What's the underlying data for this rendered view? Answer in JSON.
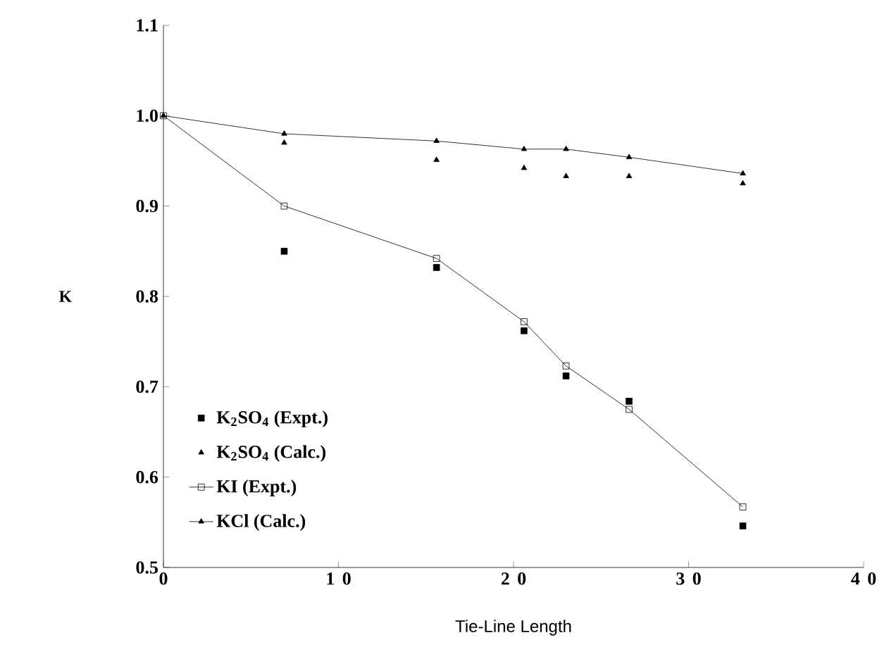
{
  "chart_data": {
    "type": "line",
    "xlabel": "Tie-Line Length",
    "ylabel": "K",
    "xlim": [
      0,
      40
    ],
    "ylim": [
      0.5,
      1.1
    ],
    "xticks": [
      0,
      10,
      20,
      30,
      40
    ],
    "yticks": [
      0.5,
      0.6,
      0.7,
      0.8,
      0.9,
      {
        "value": 1.0,
        "label": "1.0"
      },
      1.1
    ],
    "grid": false,
    "legend": "bottom left",
    "series": [
      {
        "name": "K$_{2}$SO$_{4}$ (Expt.)",
        "type": "scatter",
        "marker": "square",
        "color": "#000000",
        "x": [
          6.9,
          15.6,
          20.6,
          23.0,
          26.6,
          33.1
        ],
        "values": [
          0.85,
          0.832,
          0.762,
          0.712,
          0.684,
          0.546
        ]
      },
      {
        "name": "K$_{2}$SO$_{4}$ (Calc.)",
        "type": "scatter",
        "marker": "triangle",
        "color": "#000000",
        "x": [
          6.9,
          15.6,
          20.6,
          23.0,
          26.6,
          33.1
        ],
        "values": [
          0.97,
          0.951,
          0.942,
          0.933,
          0.933,
          0.925
        ]
      },
      {
        "name": "KI (Expt.)",
        "marker": "square",
        "color": "#000000",
        "x": [
          0,
          6.9,
          15.6,
          20.6,
          23.0,
          26.6,
          33.1
        ],
        "values": [
          1.0,
          0.9,
          0.842,
          0.772,
          0.723,
          0.675,
          0.567
        ]
      },
      {
        "name": "KCl (Calc.)",
        "marker": "triangle",
        "color": "#000000",
        "x": [
          0,
          6.9,
          15.6,
          20.6,
          23.0,
          26.6,
          33.1
        ],
        "values": [
          1.0,
          0.98,
          0.972,
          0.963,
          0.963,
          0.954,
          0.936
        ]
      }
    ]
  }
}
